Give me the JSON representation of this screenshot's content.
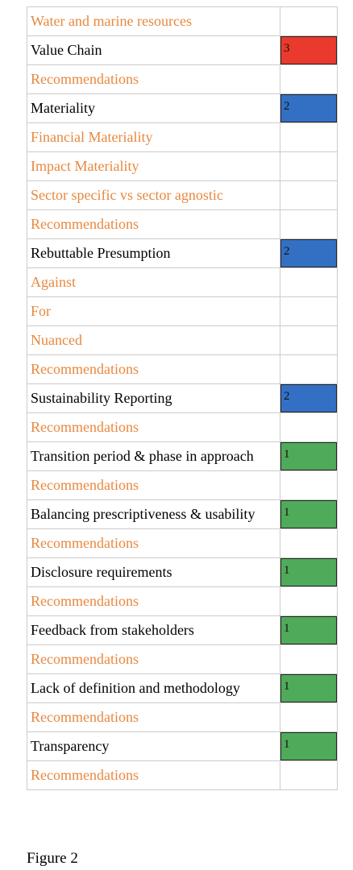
{
  "table": {
    "rows": [
      {
        "label": "Water and marine resources"
      },
      {
        "label": "Value Chain",
        "score": 3,
        "score_color": "#ea3a2d"
      },
      {
        "label": "Recommendations"
      },
      {
        "label": "Materiality",
        "score": 2,
        "score_color": "#3370c4"
      },
      {
        "label": "Financial Materiality"
      },
      {
        "label": "Impact Materiality"
      },
      {
        "label": "Sector specific vs sector agnostic"
      },
      {
        "label": "Recommendations"
      },
      {
        "label": "Rebuttable Presumption",
        "score": 2,
        "score_color": "#3370c4"
      },
      {
        "label": "Against"
      },
      {
        "label": "For"
      },
      {
        "label": "Nuanced"
      },
      {
        "label": "Recommendations"
      },
      {
        "label": "Sustainability Reporting",
        "score": 2,
        "score_color": "#3370c4"
      },
      {
        "label": "Recommendations"
      },
      {
        "label": "Transition period & phase in approach",
        "score": 1,
        "score_color": "#4fab5a"
      },
      {
        "label": "Recommendations"
      },
      {
        "label": "Balancing prescriptiveness & usability",
        "score": 1,
        "score_color": "#4fab5a"
      },
      {
        "label": "Recommendations"
      },
      {
        "label": "Disclosure requirements",
        "score": 1,
        "score_color": "#4fab5a"
      },
      {
        "label": "Recommendations"
      },
      {
        "label": "Feedback from stakeholders",
        "score": 1,
        "score_color": "#4fab5a"
      },
      {
        "label": "Recommendations"
      },
      {
        "label": "Lack of definition and methodology",
        "score": 1,
        "score_color": "#4fab5a"
      },
      {
        "label": "Recommendations"
      },
      {
        "label": "Transparency",
        "score": 1,
        "score_color": "#4fab5a"
      },
      {
        "label": "Recommendations"
      }
    ]
  },
  "caption": "Figure 2"
}
